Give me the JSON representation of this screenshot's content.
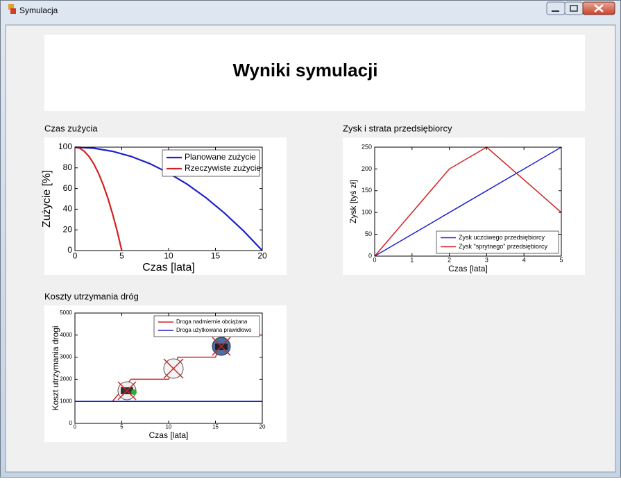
{
  "window": {
    "title": "Symulacja"
  },
  "header": {
    "title": "Wyniki symulacji"
  },
  "chart_data": [
    {
      "type": "line",
      "title": "Czas zużycia",
      "xlabel": "Czas [lata]",
      "ylabel": "Zużycie [%]",
      "xlim": [
        0,
        20
      ],
      "ylim": [
        0,
        100
      ],
      "xticks": [
        0,
        5,
        10,
        15,
        20
      ],
      "yticks": [
        0,
        20,
        40,
        60,
        80,
        100
      ],
      "legend": "upper right",
      "series": [
        {
          "name": "Planowane zużycie",
          "color": "#1f1fd0",
          "x": [
            0,
            2,
            4,
            6,
            8,
            10,
            12,
            14,
            16,
            18,
            20
          ],
          "values": [
            100,
            99,
            96,
            91,
            84,
            75,
            64,
            51,
            36,
            19,
            0
          ]
        },
        {
          "name": "Rzeczywiste zużycie",
          "color": "#d42020",
          "x": [
            0,
            0.5,
            1,
            1.5,
            2,
            2.5,
            3,
            3.5,
            4,
            4.5,
            5
          ],
          "values": [
            100,
            99,
            96,
            91,
            84,
            75,
            64,
            51,
            36,
            19,
            0
          ]
        }
      ]
    },
    {
      "type": "line",
      "title": "Zysk i strata przedsiębiorcy",
      "xlabel": "Czas [lata]",
      "ylabel": "Zysk [tyś zł]",
      "xlim": [
        0,
        5
      ],
      "ylim": [
        0,
        250
      ],
      "xticks": [
        0,
        1,
        2,
        3,
        4,
        5
      ],
      "yticks": [
        0,
        50,
        100,
        150,
        200,
        250
      ],
      "legend": "lower right",
      "series": [
        {
          "name": "Zysk uczciwego przedsiębiorcy",
          "color": "#1f1fd0",
          "x": [
            0,
            1,
            2,
            3,
            4,
            5
          ],
          "values": [
            0,
            50,
            100,
            150,
            200,
            250
          ]
        },
        {
          "name": "Zysk \"sprytnego\" przedsiębiorcy",
          "color": "#d42020",
          "x": [
            0,
            2,
            3,
            5
          ],
          "values": [
            0,
            200,
            250,
            100
          ]
        }
      ]
    },
    {
      "type": "line",
      "title": "Koszty utrzymania dróg",
      "xlabel": "Czas [lata]",
      "ylabel": "Koszt utrzymania drogi",
      "xlim": [
        0,
        20
      ],
      "ylim": [
        0,
        5000
      ],
      "xticks": [
        0,
        5,
        10,
        15,
        20
      ],
      "yticks": [
        0,
        1000,
        2000,
        3000,
        4000,
        5000
      ],
      "legend": "upper right",
      "series": [
        {
          "name": "Droga nadmiernie obciążana",
          "color": "#d42020",
          "x": [
            0,
            4,
            6,
            10,
            11,
            15,
            16,
            20
          ],
          "values": [
            1000,
            1000,
            2000,
            2000,
            3000,
            3000,
            4000,
            4000
          ]
        },
        {
          "name": "Droga użytkowana prawidłowo",
          "color": "#1f1fd0",
          "x": [
            0,
            20
          ],
          "values": [
            1000,
            1000
          ]
        }
      ]
    }
  ]
}
